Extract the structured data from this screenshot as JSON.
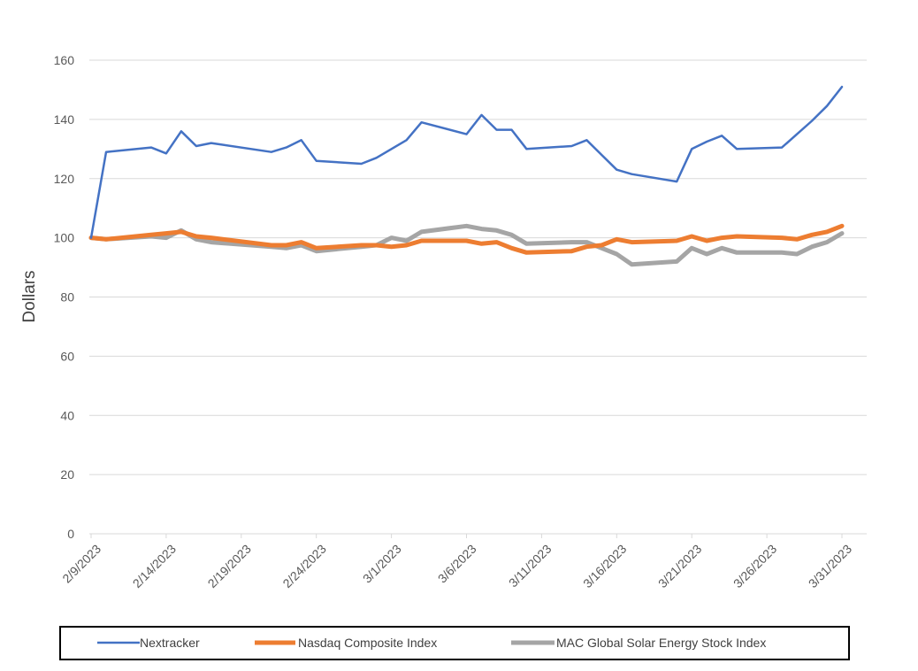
{
  "chart_data": {
    "type": "line",
    "title": "",
    "xlabel": "",
    "ylabel": "Dollars",
    "ylim": [
      0,
      160
    ],
    "y_ticks": [
      "0",
      "20",
      "40",
      "60",
      "80",
      "100",
      "120",
      "140",
      "160"
    ],
    "x_range": [
      "2/9/2023",
      "4/1/2023"
    ],
    "x_ticks": [
      "2/9/2023",
      "2/14/2023",
      "2/19/2023",
      "2/24/2023",
      "3/1/2023",
      "3/6/2023",
      "3/11/2023",
      "3/16/2023",
      "3/21/2023",
      "3/26/2023",
      "3/31/2023"
    ],
    "grid": "horizontal",
    "legend_position": "bottom",
    "series": [
      {
        "name": "Nextracker",
        "color": "#4472C4",
        "points": [
          [
            "2/9/2023",
            100
          ],
          [
            "2/10/2023",
            129
          ],
          [
            "2/13/2023",
            130.5
          ],
          [
            "2/14/2023",
            128.5
          ],
          [
            "2/15/2023",
            136
          ],
          [
            "2/16/2023",
            131
          ],
          [
            "2/17/2023",
            132
          ],
          [
            "2/21/2023",
            129
          ],
          [
            "2/22/2023",
            130.5
          ],
          [
            "2/23/2023",
            133
          ],
          [
            "2/24/2023",
            126
          ],
          [
            "2/27/2023",
            125
          ],
          [
            "2/28/2023",
            127
          ],
          [
            "3/1/2023",
            130
          ],
          [
            "3/2/2023",
            133
          ],
          [
            "3/3/2023",
            139
          ],
          [
            "3/6/2023",
            135
          ],
          [
            "3/7/2023",
            141.5
          ],
          [
            "3/8/2023",
            136.5
          ],
          [
            "3/9/2023",
            136.5
          ],
          [
            "3/10/2023",
            130
          ],
          [
            "3/13/2023",
            131
          ],
          [
            "3/14/2023",
            133
          ],
          [
            "3/15/2023",
            128
          ],
          [
            "3/16/2023",
            123
          ],
          [
            "3/17/2023",
            121.5
          ],
          [
            "3/20/2023",
            119
          ],
          [
            "3/21/2023",
            130
          ],
          [
            "3/22/2023",
            132.5
          ],
          [
            "3/23/2023",
            134.5
          ],
          [
            "3/24/2023",
            130
          ],
          [
            "3/27/2023",
            130.5
          ],
          [
            "3/28/2023",
            135
          ],
          [
            "3/29/2023",
            139.5
          ],
          [
            "3/30/2023",
            144.5
          ],
          [
            "3/31/2023",
            151
          ]
        ]
      },
      {
        "name": "Nasdaq Composite Index",
        "color": "#ED7D31",
        "points": [
          [
            "2/9/2023",
            100
          ],
          [
            "2/10/2023",
            99.5
          ],
          [
            "2/13/2023",
            101
          ],
          [
            "2/14/2023",
            101.5
          ],
          [
            "2/15/2023",
            102
          ],
          [
            "2/16/2023",
            100.5
          ],
          [
            "2/17/2023",
            100
          ],
          [
            "2/21/2023",
            97.5
          ],
          [
            "2/22/2023",
            97.5
          ],
          [
            "2/23/2023",
            98.5
          ],
          [
            "2/24/2023",
            96.5
          ],
          [
            "2/27/2023",
            97.5
          ],
          [
            "2/28/2023",
            97.5
          ],
          [
            "3/1/2023",
            97
          ],
          [
            "3/2/2023",
            97.5
          ],
          [
            "3/3/2023",
            99
          ],
          [
            "3/6/2023",
            99
          ],
          [
            "3/7/2023",
            98
          ],
          [
            "3/8/2023",
            98.5
          ],
          [
            "3/9/2023",
            96.5
          ],
          [
            "3/10/2023",
            95
          ],
          [
            "3/13/2023",
            95.5
          ],
          [
            "3/14/2023",
            97
          ],
          [
            "3/15/2023",
            97.5
          ],
          [
            "3/16/2023",
            99.5
          ],
          [
            "3/17/2023",
            98.5
          ],
          [
            "3/20/2023",
            99
          ],
          [
            "3/21/2023",
            100.5
          ],
          [
            "3/22/2023",
            99
          ],
          [
            "3/23/2023",
            100
          ],
          [
            "3/24/2023",
            100.5
          ],
          [
            "3/27/2023",
            100
          ],
          [
            "3/28/2023",
            99.5
          ],
          [
            "3/29/2023",
            101
          ],
          [
            "3/30/2023",
            102
          ],
          [
            "3/31/2023",
            104
          ]
        ]
      },
      {
        "name": "MAC Global Solar Energy Stock Index",
        "color": "#A5A5A5",
        "points": [
          [
            "2/9/2023",
            100
          ],
          [
            "2/10/2023",
            99.5
          ],
          [
            "2/13/2023",
            100.5
          ],
          [
            "2/14/2023",
            100
          ],
          [
            "2/15/2023",
            102.5
          ],
          [
            "2/16/2023",
            99.5
          ],
          [
            "2/17/2023",
            98.5
          ],
          [
            "2/21/2023",
            97
          ],
          [
            "2/22/2023",
            96.5
          ],
          [
            "2/23/2023",
            97.5
          ],
          [
            "2/24/2023",
            95.5
          ],
          [
            "2/27/2023",
            97
          ],
          [
            "2/28/2023",
            97.5
          ],
          [
            "3/1/2023",
            100
          ],
          [
            "3/2/2023",
            99
          ],
          [
            "3/3/2023",
            102
          ],
          [
            "3/6/2023",
            104
          ],
          [
            "3/7/2023",
            103
          ],
          [
            "3/8/2023",
            102.5
          ],
          [
            "3/9/2023",
            101
          ],
          [
            "3/10/2023",
            98
          ],
          [
            "3/13/2023",
            98.5
          ],
          [
            "3/14/2023",
            98.5
          ],
          [
            "3/15/2023",
            96.5
          ],
          [
            "3/16/2023",
            94.5
          ],
          [
            "3/17/2023",
            91
          ],
          [
            "3/20/2023",
            92
          ],
          [
            "3/21/2023",
            96.5
          ],
          [
            "3/22/2023",
            94.5
          ],
          [
            "3/23/2023",
            96.5
          ],
          [
            "3/24/2023",
            95
          ],
          [
            "3/27/2023",
            95
          ],
          [
            "3/28/2023",
            94.5
          ],
          [
            "3/29/2023",
            97
          ],
          [
            "3/30/2023",
            98.5
          ],
          [
            "3/31/2023",
            101.5
          ]
        ]
      }
    ]
  }
}
